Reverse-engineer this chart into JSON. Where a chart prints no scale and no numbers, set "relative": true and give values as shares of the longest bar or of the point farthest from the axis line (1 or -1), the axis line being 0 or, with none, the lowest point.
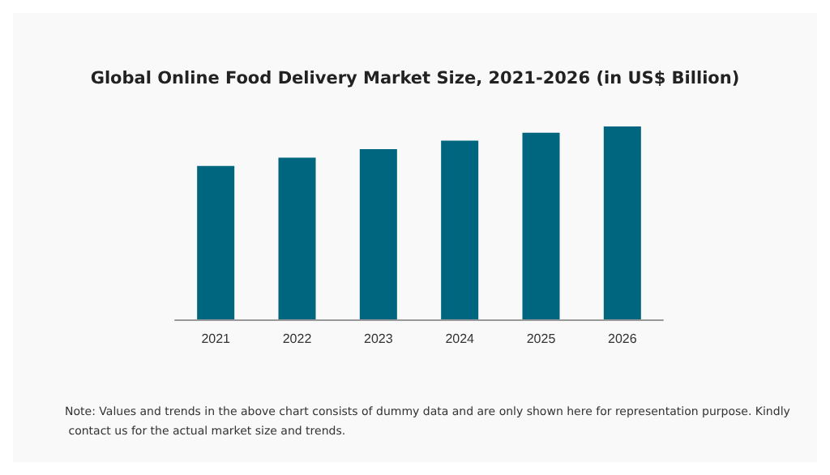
{
  "chart_data": {
    "type": "bar",
    "title": "Global Online Food Delivery Market Size, 2021-2026 (in US$ Billion)",
    "categories": [
      "2021",
      "2022",
      "2023",
      "2024",
      "2025",
      "2026"
    ],
    "values": [
      0.795,
      0.838,
      0.882,
      0.926,
      0.967,
      1
    ],
    "color": "#006680",
    "relative": true,
    "annotations": [
      "Note: Values and trends in the above chart consists of dummy data and are only shown here for representation purpose. Kindly contact us for the actual market size and trends."
    ]
  }
}
